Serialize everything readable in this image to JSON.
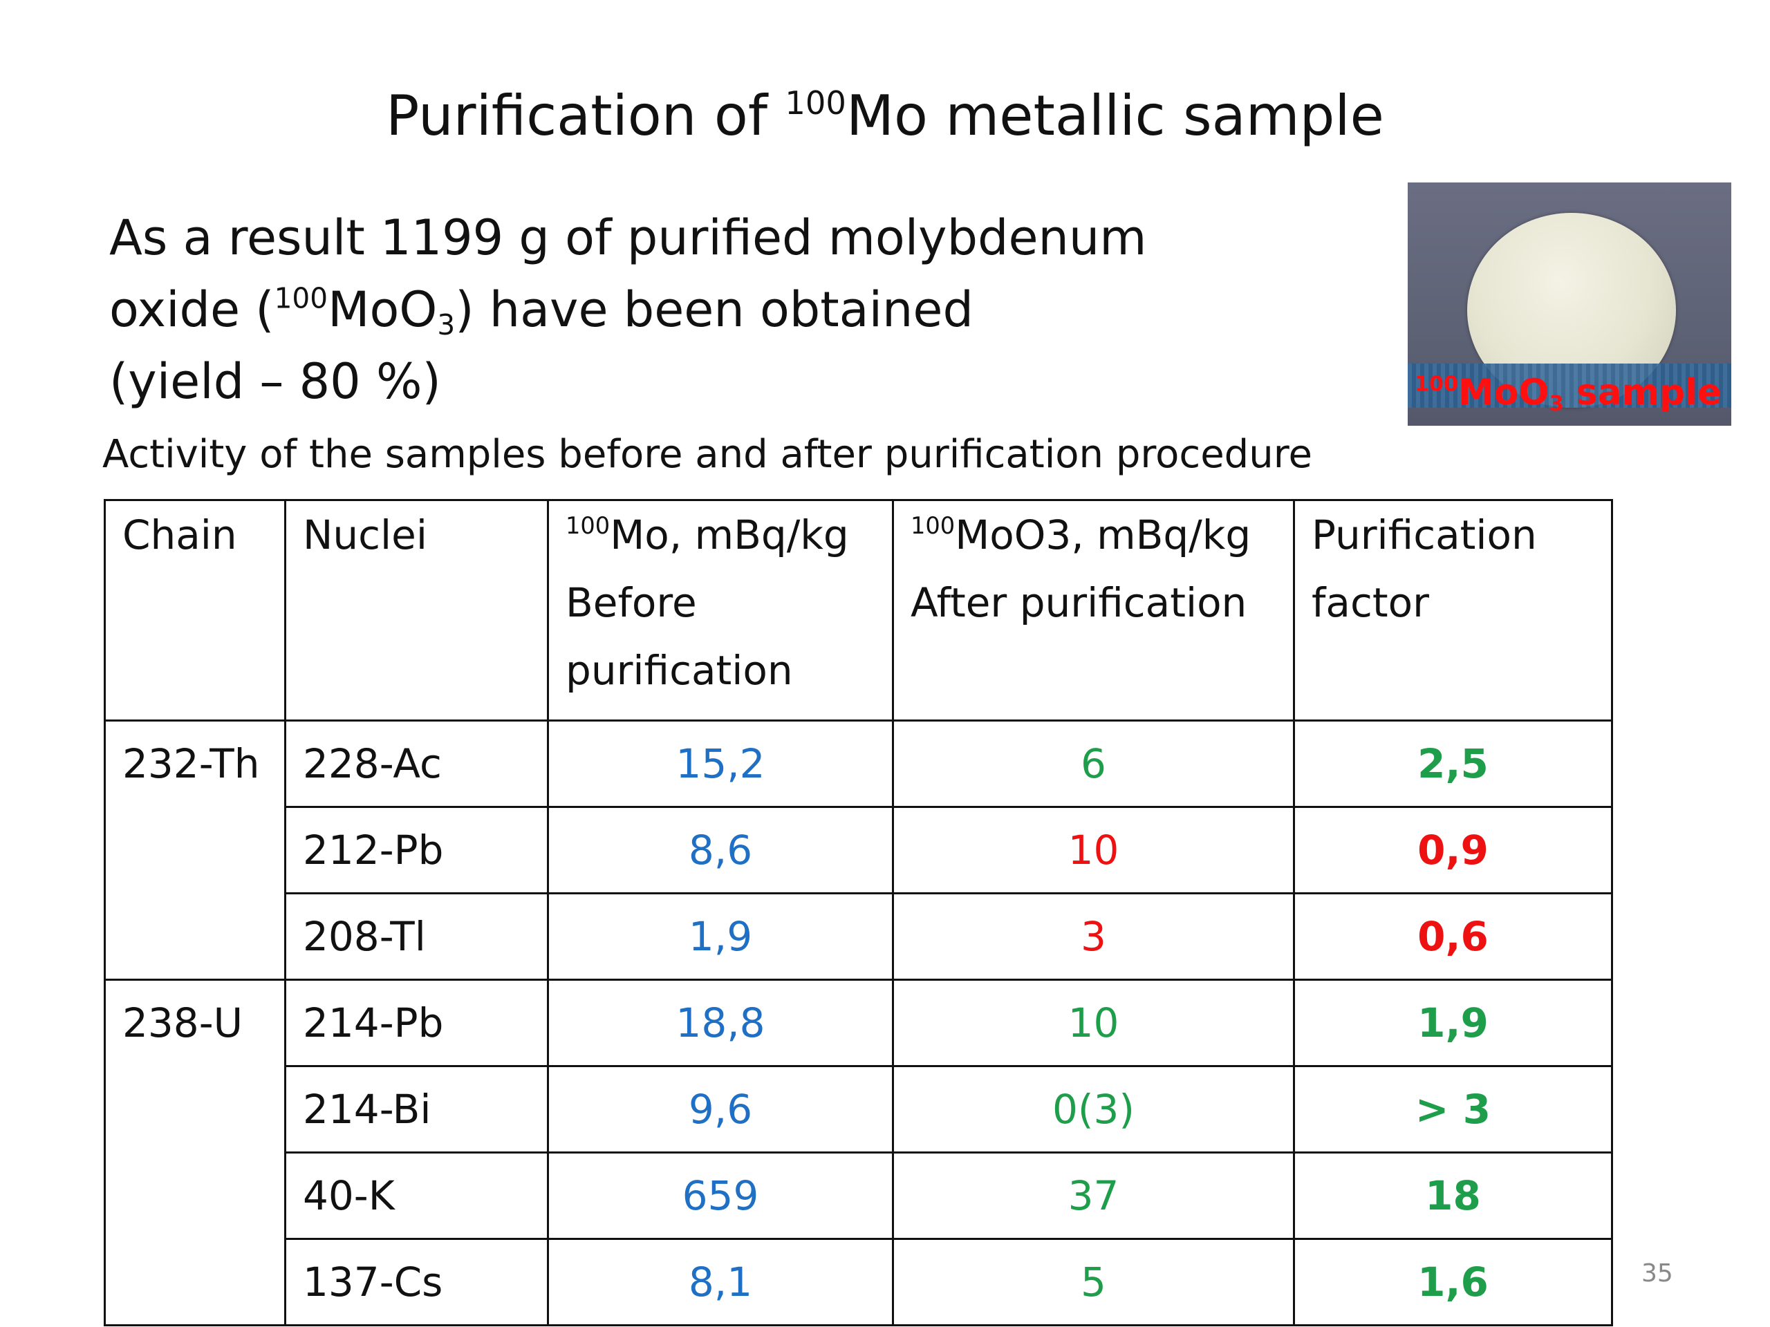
{
  "slide": {
    "title_prefix": "Purification of ",
    "title_sup": "100",
    "title_suffix": "Mo metallic sample",
    "result_line1": "As a result 1199 g of purified molybdenum",
    "result_line2_a": "oxide (",
    "result_line2_sup": "100",
    "result_line2_b": "MoO",
    "result_line2_sub": "3",
    "result_line2_c": ") have been obtained",
    "result_line3": "(yield – 80 %)",
    "subtitle": "Activity of the samples before and after purification procedure",
    "photo_label_sup": "100",
    "photo_label_a": "MoO",
    "photo_label_sub": "3",
    "photo_label_b": " sample",
    "page_number": "35"
  },
  "table": {
    "headers": {
      "chain": "Chain",
      "nuclei": "Nuclei",
      "before_sup": "100",
      "before_line1": "Mo, mBq/kg",
      "before_line2": "Before",
      "before_line3": "purification",
      "after_sup": "100",
      "after_line1": "MoO3, mBq/kg",
      "after_line2": "After purification",
      "factor_line1": "Purification",
      "factor_line2": "factor"
    },
    "rows": [
      {
        "chain": "232-Th",
        "nuclei": "228-Ac",
        "before": "15,2",
        "after": "6",
        "factor": "2,5",
        "after_color": "green",
        "factor_color": "green"
      },
      {
        "chain": "",
        "nuclei": "212-Pb",
        "before": "8,6",
        "after": "10",
        "factor": "0,9",
        "after_color": "red",
        "factor_color": "red"
      },
      {
        "chain": "",
        "nuclei": "208-Tl",
        "before": "1,9",
        "after": "3",
        "factor": "0,6",
        "after_color": "red",
        "factor_color": "red"
      },
      {
        "chain": "238-U",
        "nuclei": "214-Pb",
        "before": "18,8",
        "after": "10",
        "factor": "1,9",
        "after_color": "green",
        "factor_color": "green"
      },
      {
        "chain": "",
        "nuclei": "214-Bi",
        "before": "9,6",
        "after": "0(3)",
        "factor": "> 3",
        "after_color": "green",
        "factor_color": "green"
      },
      {
        "chain": "",
        "nuclei": "40-K",
        "before": "659",
        "after": "37",
        "factor": "18",
        "after_color": "green",
        "factor_color": "green"
      },
      {
        "chain": "",
        "nuclei": "137-Cs",
        "before": "8,1",
        "after": "5",
        "factor": "1,6",
        "after_color": "green",
        "factor_color": "green"
      }
    ]
  },
  "colors": {
    "before_values": "#1f6fc4",
    "good": "#1e9e4a",
    "bad": "#ee1111"
  }
}
